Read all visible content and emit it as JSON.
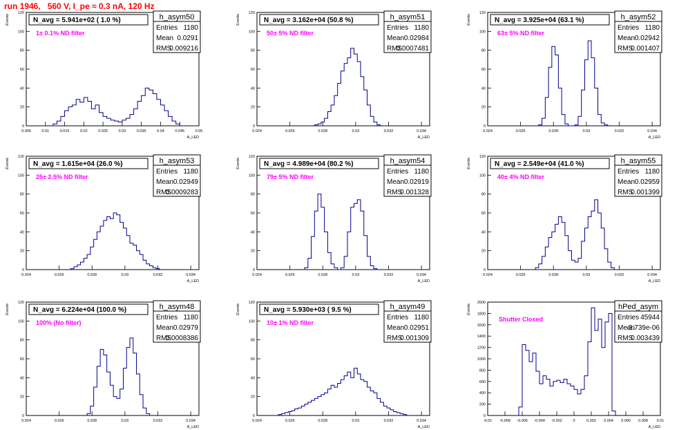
{
  "run_title": "run 1946,   560 V, I_pe ≈ 0.3 nA, 120 Hz",
  "colors": {
    "histogram": "#00008b",
    "annotation": "#ff00ff",
    "title": "#ff0000",
    "frame": "#000000"
  },
  "chart_data": [
    {
      "type": "histogram",
      "name": "h_asym50",
      "title": "N_avg = 5.941e+02 ( 1.0 %)",
      "note": "1± 0.1% ND filter",
      "stats": {
        "entries": "1180",
        "mean": "0.0291",
        "rms": "0.009216"
      },
      "ylabel": "Events",
      "xlabel": "A_LED",
      "xlim": [
        0.005,
        0.05
      ],
      "ylim": [
        0,
        120
      ],
      "xticks": [
        0.005,
        0.01,
        0.015,
        0.02,
        0.025,
        0.03,
        0.035,
        0.04,
        0.045,
        0.05
      ],
      "xtick_labels": [
        "0.005",
        "0.01",
        "0.015",
        "0.02",
        "0.025",
        "0.03",
        "0.035",
        "0.04",
        "0.045",
        "0.05"
      ],
      "yticks": [
        0,
        20,
        40,
        60,
        80,
        100,
        120
      ],
      "ytick_labels": [
        "0",
        "20",
        "40",
        "60",
        "80",
        "100",
        "120"
      ],
      "x": [
        0.0125,
        0.0135,
        0.0145,
        0.0155,
        0.0165,
        0.0175,
        0.0185,
        0.0195,
        0.0205,
        0.0215,
        0.0225,
        0.0235,
        0.0245,
        0.0255,
        0.0265,
        0.0275,
        0.0285,
        0.0295,
        0.0305,
        0.0315,
        0.0325,
        0.0335,
        0.0345,
        0.0355,
        0.0365,
        0.0375,
        0.0385,
        0.0395,
        0.0405,
        0.0415,
        0.0425,
        0.0435,
        0.0445
      ],
      "y": [
        2,
        5,
        10,
        16,
        20,
        22,
        28,
        25,
        30,
        26,
        18,
        22,
        14,
        10,
        8,
        6,
        5,
        4,
        6,
        8,
        12,
        18,
        26,
        32,
        40,
        38,
        34,
        28,
        22,
        16,
        10,
        5,
        2
      ]
    },
    {
      "type": "histogram",
      "name": "h_asym51",
      "title": "N_avg = 3.162e+04 (50.8 %)",
      "note": "50± 5% ND filter",
      "stats": {
        "entries": "1180",
        "mean": "0.02984",
        "rms": "0.0007481"
      },
      "ylabel": "Events",
      "xlabel": "A_LED",
      "xlim": [
        0.024,
        0.0345
      ],
      "ylim": [
        0,
        120
      ],
      "xticks": [
        0.024,
        0.026,
        0.028,
        0.03,
        0.032,
        0.034
      ],
      "xtick_labels": [
        "0.024",
        "0.026",
        "0.028",
        "0.03",
        "0.032",
        "0.034"
      ],
      "yticks": [
        0,
        20,
        40,
        60,
        80,
        100,
        120
      ],
      "ytick_labels": [
        "0",
        "20",
        "40",
        "60",
        "80",
        "100",
        "120"
      ],
      "x": [
        0.0276,
        0.0278,
        0.028,
        0.0282,
        0.0284,
        0.0286,
        0.0288,
        0.029,
        0.0292,
        0.0294,
        0.0296,
        0.0298,
        0.03,
        0.0302,
        0.0304,
        0.0306,
        0.0308,
        0.031,
        0.0312,
        0.0314
      ],
      "y": [
        1,
        2,
        4,
        8,
        15,
        22,
        32,
        45,
        58,
        66,
        72,
        82,
        76,
        68,
        52,
        38,
        22,
        10,
        4,
        1
      ]
    },
    {
      "type": "histogram",
      "name": "h_asym52",
      "title": "N_avg = 3.925e+04 (63.1 %)",
      "note": "63± 5% ND filter",
      "stats": {
        "entries": "1180",
        "mean": "0.02942",
        "rms": "0.001407"
      },
      "ylabel": "Events",
      "xlabel": "A_LED",
      "xlim": [
        0.024,
        0.0345
      ],
      "ylim": [
        0,
        120
      ],
      "xticks": [
        0.024,
        0.026,
        0.028,
        0.03,
        0.032,
        0.034
      ],
      "xtick_labels": [
        "0.024",
        "0.026",
        "0.028",
        "0.03",
        "0.032",
        "0.034"
      ],
      "yticks": [
        0,
        20,
        40,
        60,
        80,
        100,
        120
      ],
      "ytick_labels": [
        "0",
        "20",
        "40",
        "60",
        "80",
        "100",
        "120"
      ],
      "x": [
        0.0272,
        0.0274,
        0.0276,
        0.0278,
        0.028,
        0.0282,
        0.0284,
        0.0286,
        0.0288,
        0.029,
        0.0292,
        0.0294,
        0.0296,
        0.0298,
        0.03,
        0.0302,
        0.0304,
        0.0306,
        0.0308,
        0.031,
        0.0312
      ],
      "y": [
        1,
        8,
        30,
        62,
        84,
        75,
        40,
        12,
        2,
        0,
        0,
        1,
        10,
        38,
        70,
        90,
        72,
        40,
        12,
        3,
        1
      ]
    },
    {
      "type": "histogram",
      "name": "h_asym53",
      "title": "N_avg = 1.615e+04 (26.0 %)",
      "note": "25± 2.5% ND filter",
      "stats": {
        "entries": "1180",
        "mean": "0.02949",
        "rms": "0.0009283"
      },
      "ylabel": "Events",
      "xlabel": "A_LED",
      "xlim": [
        0.024,
        0.0345
      ],
      "ylim": [
        0,
        120
      ],
      "xticks": [
        0.024,
        0.026,
        0.028,
        0.03,
        0.032,
        0.034
      ],
      "xtick_labels": [
        "0.024",
        "0.026",
        "0.028",
        "0.03",
        "0.032",
        "0.034"
      ],
      "yticks": [
        0,
        20,
        40,
        60,
        80,
        100,
        120
      ],
      "ytick_labels": [
        "0",
        "20",
        "40",
        "60",
        "80",
        "100",
        "120"
      ],
      "x": [
        0.0268,
        0.027,
        0.0272,
        0.0274,
        0.0276,
        0.0278,
        0.028,
        0.0282,
        0.0284,
        0.0286,
        0.0288,
        0.029,
        0.0292,
        0.0294,
        0.0296,
        0.0298,
        0.03,
        0.0302,
        0.0304,
        0.0306,
        0.0308,
        0.031,
        0.0312,
        0.0314,
        0.0316,
        0.0318,
        0.032
      ],
      "y": [
        1,
        3,
        5,
        8,
        12,
        16,
        24,
        32,
        40,
        46,
        52,
        56,
        54,
        60,
        58,
        50,
        44,
        36,
        28,
        26,
        20,
        16,
        10,
        6,
        4,
        2,
        1
      ]
    },
    {
      "type": "histogram",
      "name": "h_asym54",
      "title": "N_avg = 4.989e+04 (80.2 %)",
      "note": "79± 5% ND filter",
      "stats": {
        "entries": "1180",
        "mean": "0.02919",
        "rms": "0.001328"
      },
      "ylabel": "Events",
      "xlabel": "A_LED",
      "xlim": [
        0.024,
        0.0345
      ],
      "ylim": [
        0,
        120
      ],
      "xticks": [
        0.024,
        0.026,
        0.028,
        0.03,
        0.032,
        0.034
      ],
      "xtick_labels": [
        "0.024",
        "0.026",
        "0.028",
        "0.03",
        "0.032",
        "0.034"
      ],
      "yticks": [
        0,
        20,
        40,
        60,
        80,
        100,
        120
      ],
      "ytick_labels": [
        "0",
        "20",
        "40",
        "60",
        "80",
        "100",
        "120"
      ],
      "x": [
        0.027,
        0.0272,
        0.0274,
        0.0276,
        0.0278,
        0.028,
        0.0282,
        0.0284,
        0.0286,
        0.0288,
        0.029,
        0.0292,
        0.0294,
        0.0296,
        0.0298,
        0.03,
        0.0302,
        0.0304,
        0.0306,
        0.0308,
        0.031,
        0.0312
      ],
      "y": [
        2,
        12,
        35,
        62,
        80,
        66,
        40,
        18,
        6,
        2,
        0,
        2,
        14,
        40,
        66,
        70,
        74,
        62,
        36,
        14,
        4,
        1
      ]
    },
    {
      "type": "histogram",
      "name": "h_asym55",
      "title": "N_avg = 2.549e+04 (41.0 %)",
      "note": "40± 4% ND filter",
      "stats": {
        "entries": "1180",
        "mean": "0.02959",
        "rms": "0.001399"
      },
      "ylabel": "Events",
      "xlabel": "A_LED",
      "xlim": [
        0.024,
        0.0345
      ],
      "ylim": [
        0,
        120
      ],
      "xticks": [
        0.024,
        0.026,
        0.028,
        0.03,
        0.032,
        0.034
      ],
      "xtick_labels": [
        "0.024",
        "0.026",
        "0.028",
        "0.03",
        "0.032",
        "0.034"
      ],
      "yticks": [
        0,
        20,
        40,
        60,
        80,
        100,
        120
      ],
      "ytick_labels": [
        "0",
        "20",
        "40",
        "60",
        "80",
        "100",
        "120"
      ],
      "x": [
        0.027,
        0.0272,
        0.0274,
        0.0276,
        0.0278,
        0.028,
        0.0282,
        0.0284,
        0.0286,
        0.0288,
        0.029,
        0.0292,
        0.0294,
        0.0296,
        0.0298,
        0.03,
        0.0302,
        0.0304,
        0.0306,
        0.0308,
        0.031,
        0.0312,
        0.0314,
        0.0316
      ],
      "y": [
        2,
        6,
        14,
        24,
        34,
        40,
        48,
        56,
        50,
        36,
        20,
        10,
        8,
        12,
        30,
        44,
        56,
        62,
        74,
        60,
        44,
        22,
        8,
        2
      ]
    },
    {
      "type": "histogram",
      "name": "h_asym48",
      "title": "N_avg = 6.224e+04 (100.0 %)",
      "note": "100% (No filter)",
      "stats": {
        "entries": "1180",
        "mean": "0.02979",
        "rms": "0.0008386"
      },
      "ylabel": "Events",
      "xlabel": "A_LED",
      "xlim": [
        0.024,
        0.0345
      ],
      "ylim": [
        0,
        120
      ],
      "xticks": [
        0.024,
        0.026,
        0.028,
        0.03,
        0.032,
        0.034
      ],
      "xtick_labels": [
        "0.024",
        "0.026",
        "0.028",
        "0.03",
        "0.032",
        "0.034"
      ],
      "yticks": [
        0,
        20,
        40,
        60,
        80,
        100,
        120
      ],
      "ytick_labels": [
        "0",
        "20",
        "40",
        "60",
        "80",
        "100",
        "120"
      ],
      "x": [
        0.0278,
        0.028,
        0.0282,
        0.0284,
        0.0286,
        0.0288,
        0.029,
        0.0292,
        0.0294,
        0.0296,
        0.0298,
        0.03,
        0.0302,
        0.0304,
        0.0306,
        0.0308,
        0.031,
        0.0312,
        0.0314
      ],
      "y": [
        2,
        10,
        30,
        52,
        70,
        64,
        46,
        32,
        20,
        18,
        28,
        50,
        72,
        82,
        66,
        44,
        22,
        8,
        2
      ]
    },
    {
      "type": "histogram",
      "name": "h_asym49",
      "title": "N_avg = 5.930e+03 ( 9.5 %)",
      "note": "10± 1% ND filter",
      "stats": {
        "entries": "1180",
        "mean": "0.02951",
        "rms": "0.001309"
      },
      "ylabel": "Events",
      "xlabel": "A_LED",
      "xlim": [
        0.024,
        0.0345
      ],
      "ylim": [
        0,
        120
      ],
      "xticks": [
        0.024,
        0.026,
        0.028,
        0.03,
        0.032,
        0.034
      ],
      "xtick_labels": [
        "0.024",
        "0.026",
        "0.028",
        "0.03",
        "0.032",
        "0.034"
      ],
      "yticks": [
        0,
        20,
        40,
        60,
        80,
        100,
        120
      ],
      "ytick_labels": [
        "0",
        "20",
        "40",
        "60",
        "80",
        "100",
        "120"
      ],
      "x": [
        0.0254,
        0.0256,
        0.0258,
        0.026,
        0.0262,
        0.0264,
        0.0266,
        0.0268,
        0.027,
        0.0272,
        0.0274,
        0.0276,
        0.0278,
        0.028,
        0.0282,
        0.0284,
        0.0286,
        0.0288,
        0.029,
        0.0292,
        0.0294,
        0.0296,
        0.0298,
        0.03,
        0.0302,
        0.0304,
        0.0306,
        0.0308,
        0.031,
        0.0312,
        0.0314,
        0.0316,
        0.0318,
        0.032,
        0.0322,
        0.0324,
        0.0326,
        0.0328,
        0.033
      ],
      "y": [
        1,
        2,
        3,
        4,
        5,
        7,
        8,
        10,
        12,
        14,
        16,
        18,
        20,
        22,
        24,
        28,
        32,
        30,
        34,
        38,
        42,
        46,
        40,
        50,
        44,
        38,
        36,
        30,
        26,
        24,
        18,
        14,
        10,
        8,
        6,
        4,
        3,
        2,
        1
      ]
    },
    {
      "type": "histogram",
      "name": "hPed_asym",
      "title": "",
      "note": "Shutter Closed",
      "stats": {
        "entries": "45944",
        "mean": "-3.739e-06",
        "rms": "0.003439"
      },
      "ylabel": "Events",
      "xlabel": "A_LED",
      "xlim": [
        -0.01,
        0.01
      ],
      "ylim": [
        0,
        2000
      ],
      "xticks": [
        -0.01,
        -0.008,
        -0.006,
        -0.004,
        -0.002,
        0,
        0.002,
        0.004,
        0.006,
        0.008,
        0.01
      ],
      "xtick_labels": [
        "-0.01",
        "-0.008",
        "-0.006",
        "-0.004",
        "-0.002",
        "0",
        "0.002",
        "0.004",
        "0.006",
        "0.008",
        "0.01"
      ],
      "yticks": [
        0,
        200,
        400,
        600,
        800,
        1000,
        1200,
        1400,
        1600,
        1800,
        2000
      ],
      "ytick_labels": [
        "0",
        "200",
        "400",
        "600",
        "800",
        "1000",
        "1200",
        "1400",
        "1600",
        "1800",
        "2000"
      ],
      "x": [
        -0.0062,
        -0.0058,
        -0.0054,
        -0.005,
        -0.0046,
        -0.0042,
        -0.0038,
        -0.0034,
        -0.003,
        -0.0026,
        -0.0022,
        -0.0018,
        -0.0014,
        -0.001,
        -0.0006,
        -0.0002,
        0.0002,
        0.0006,
        0.001,
        0.0014,
        0.0018,
        0.0022,
        0.0026,
        0.003,
        0.0034,
        0.0038,
        0.0042,
        0.0046
      ],
      "y": [
        150,
        1250,
        1150,
        950,
        1100,
        780,
        560,
        700,
        640,
        520,
        600,
        620,
        580,
        640,
        560,
        520,
        460,
        380,
        460,
        700,
        1300,
        1900,
        1500,
        1700,
        1200,
        1650,
        1800,
        80
      ]
    }
  ]
}
